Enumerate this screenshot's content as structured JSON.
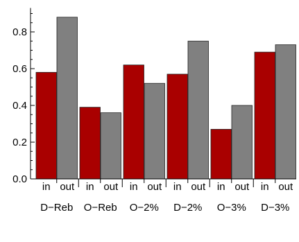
{
  "chart_data": {
    "type": "bar",
    "categories": [
      "D−Reb",
      "O−Reb",
      "O−2%",
      "D−2%",
      "O−3%",
      "D−3%"
    ],
    "sub_categories": [
      "in",
      "out"
    ],
    "series": [
      {
        "name": "in",
        "values": [
          0.58,
          0.39,
          0.62,
          0.57,
          0.27,
          0.69
        ],
        "color": "#a90000"
      },
      {
        "name": "out",
        "values": [
          0.88,
          0.36,
          0.52,
          0.75,
          0.4,
          0.73
        ],
        "color": "#808080"
      }
    ],
    "ylim": [
      0,
      0.93
    ],
    "y_ticks": [
      0.0,
      0.2,
      0.4,
      0.6,
      0.8
    ],
    "y_tick_labels": [
      "0.0",
      "0.2",
      "0.4",
      "0.6",
      "0.8"
    ],
    "grid": false,
    "legend": "none"
  }
}
